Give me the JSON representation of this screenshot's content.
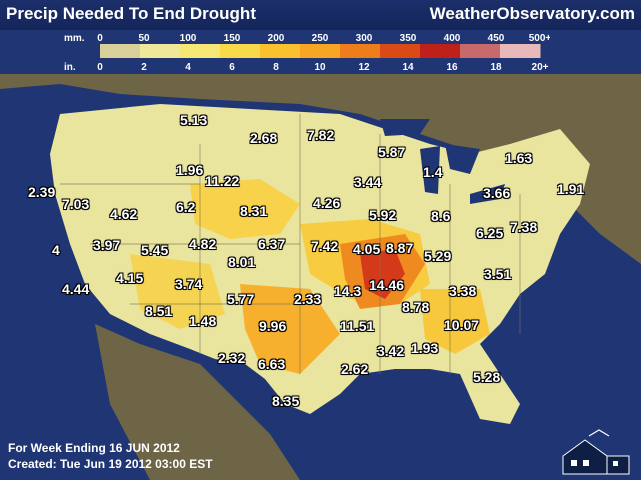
{
  "header": {
    "title": "Precip Needed To End Drought",
    "brand": "WeatherObservatory.com"
  },
  "legend": {
    "mm_label": "mm.",
    "in_label": "in.",
    "mm_ticks": [
      "0",
      "50",
      "100",
      "150",
      "200",
      "250",
      "300",
      "350",
      "400",
      "450",
      "500+"
    ],
    "in_ticks": [
      "0",
      "2",
      "4",
      "6",
      "8",
      "10",
      "12",
      "14",
      "16",
      "18",
      "20+"
    ],
    "colors": [
      "#d9cf9a",
      "#efe89a",
      "#f5e776",
      "#f7d94a",
      "#f9c12e",
      "#f6a524",
      "#ee7d1c",
      "#d84a16",
      "#c0201a",
      "#c96a6a",
      "#e7b9b9"
    ]
  },
  "values": [
    {
      "id": "mt-e",
      "text": "5.13"
    },
    {
      "id": "sd-n",
      "text": "2.68"
    },
    {
      "id": "mn-w",
      "text": "7.82"
    },
    {
      "id": "wi-n",
      "text": "5.87"
    },
    {
      "id": "ny-n",
      "text": "1.63"
    },
    {
      "id": "wa",
      "text": "2.39"
    },
    {
      "id": "or-ne",
      "text": "7.03"
    },
    {
      "id": "wy-n",
      "text": "1.96"
    },
    {
      "id": "wy-se",
      "text": "11.22"
    },
    {
      "id": "ia",
      "text": "3.44"
    },
    {
      "id": "mi-s",
      "text": "1.4"
    },
    {
      "id": "pa",
      "text": "3.66"
    },
    {
      "id": "ct",
      "text": "1.91"
    },
    {
      "id": "id",
      "text": "4.62"
    },
    {
      "id": "wy-s",
      "text": "6.2"
    },
    {
      "id": "ne",
      "text": "8.31"
    },
    {
      "id": "ne-e",
      "text": "4.26"
    },
    {
      "id": "il",
      "text": "5.92"
    },
    {
      "id": "oh",
      "text": "8.6"
    },
    {
      "id": "de",
      "text": "7.38"
    },
    {
      "id": "va-n",
      "text": "6.25"
    },
    {
      "id": "ca-n",
      "text": "4"
    },
    {
      "id": "nv",
      "text": "3.97"
    },
    {
      "id": "ut",
      "text": "5.45"
    },
    {
      "id": "co-w",
      "text": "4.82"
    },
    {
      "id": "ks-n",
      "text": "6.37"
    },
    {
      "id": "mo-w",
      "text": "7.42"
    },
    {
      "id": "mo-e",
      "text": "4.05"
    },
    {
      "id": "in",
      "text": "8.87"
    },
    {
      "id": "ky",
      "text": "5.29"
    },
    {
      "id": "co-s",
      "text": "8.01"
    },
    {
      "id": "nc",
      "text": "3.51"
    },
    {
      "id": "ca-c",
      "text": "4.44"
    },
    {
      "id": "nv-s",
      "text": "4.15"
    },
    {
      "id": "nm-n",
      "text": "3.74"
    },
    {
      "id": "tx-n",
      "text": "5.77"
    },
    {
      "id": "ok",
      "text": "2.33"
    },
    {
      "id": "ar-n",
      "text": "14.3"
    },
    {
      "id": "tn",
      "text": "14.46"
    },
    {
      "id": "sc",
      "text": "3.38"
    },
    {
      "id": "az",
      "text": "8.51"
    },
    {
      "id": "nm-s",
      "text": "1.48"
    },
    {
      "id": "tx-ne",
      "text": "9.96"
    },
    {
      "id": "ar-s",
      "text": "11.51"
    },
    {
      "id": "al",
      "text": "8.78"
    },
    {
      "id": "ga",
      "text": "10.07"
    },
    {
      "id": "ms",
      "text": "3.42"
    },
    {
      "id": "al-s",
      "text": "1.93"
    },
    {
      "id": "tx-w",
      "text": "2.32"
    },
    {
      "id": "tx-c",
      "text": "6.63"
    },
    {
      "id": "la",
      "text": "2.62"
    },
    {
      "id": "fl",
      "text": "5.28"
    },
    {
      "id": "tx-s",
      "text": "8.35"
    }
  ],
  "footer": {
    "week": "For Week Ending 16 JUN 2012",
    "created": "Created: Tue Jun 19 2012 03:00 EST"
  }
}
